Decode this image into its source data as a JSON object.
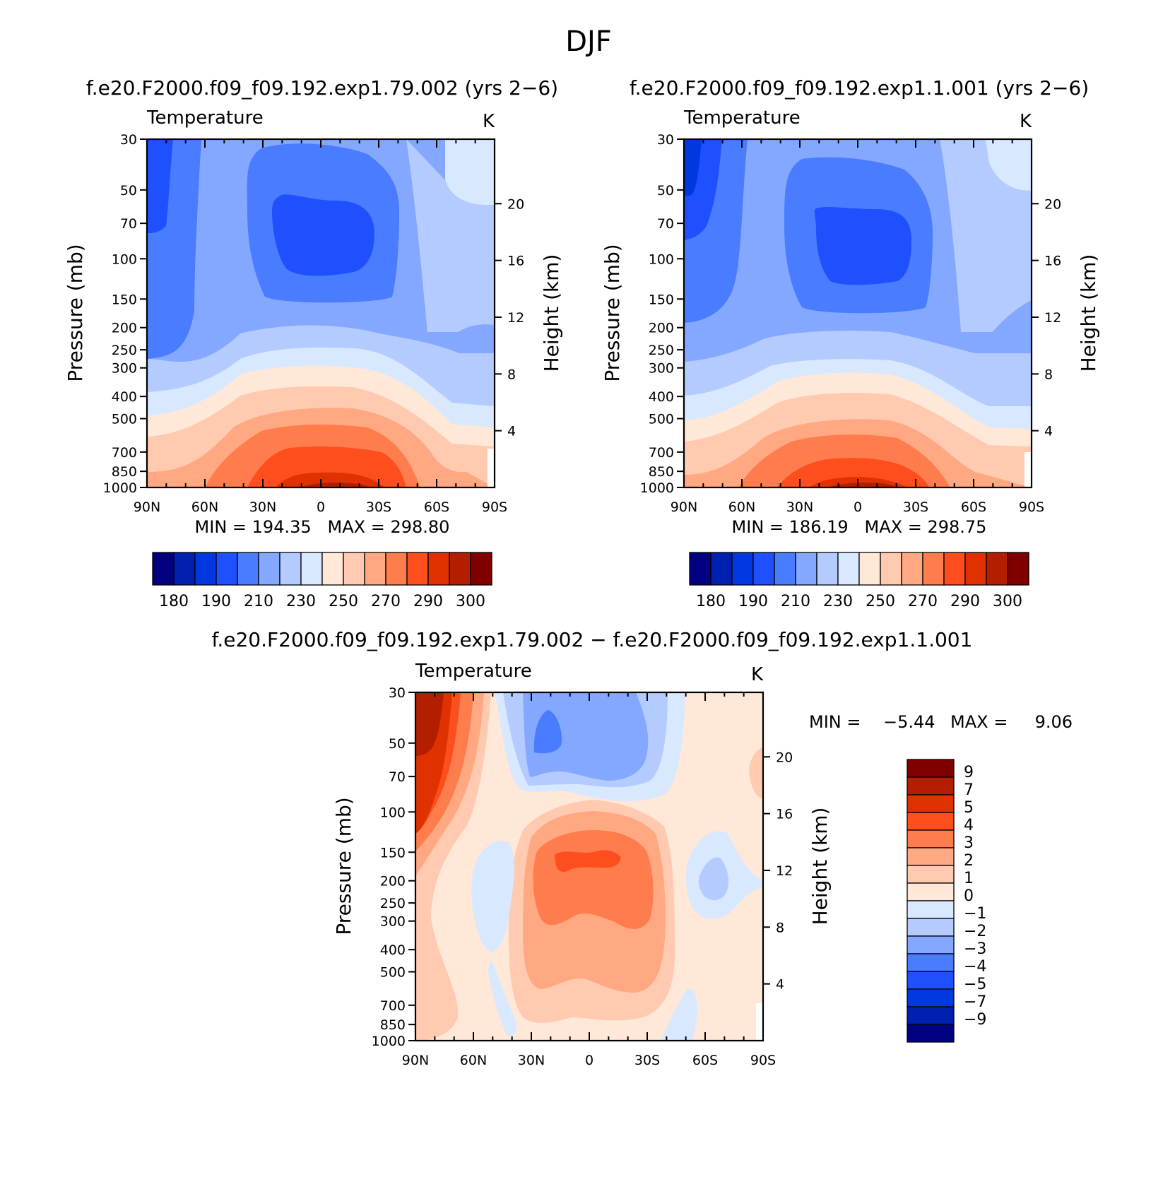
{
  "figure_title": "DJF",
  "chart_data": [
    {
      "type": "contour",
      "panel": "left",
      "title": "f.e20.F2000.f09_f09.192.exp1.79.002 (yrs 2−6)",
      "left_label": "Temperature",
      "units": "K",
      "xlabel": "",
      "ylabel": "Pressure (mb)",
      "ylabel_right": "Height (km)",
      "x_ticks": [
        "90N",
        "60N",
        "30N",
        "0",
        "30S",
        "60S",
        "90S"
      ],
      "y_ticks": [
        "30",
        "50",
        "70",
        "100",
        "150",
        "200",
        "250",
        "300",
        "400",
        "500",
        "700",
        "850",
        "1000"
      ],
      "y_right_ticks": [
        "20",
        "16",
        "12",
        "8",
        "4"
      ],
      "ylim": [
        1000,
        30
      ],
      "min_max": "MIN = 194.35   MAX = 298.80",
      "colorbar_labels": [
        "180",
        "190",
        "210",
        "230",
        "250",
        "270",
        "290",
        "300"
      ],
      "contour_levels": [
        180,
        185,
        190,
        200,
        210,
        220,
        230,
        240,
        250,
        260,
        270,
        280,
        290,
        295,
        300
      ],
      "min": 194.35,
      "max": 298.8
    },
    {
      "type": "contour",
      "panel": "right",
      "title": "f.e20.F2000.f09_f09.192.exp1.1.001 (yrs 2−6)",
      "left_label": "Temperature",
      "units": "K",
      "xlabel": "",
      "ylabel": "Pressure (mb)",
      "ylabel_right": "Height (km)",
      "x_ticks": [
        "90N",
        "60N",
        "30N",
        "0",
        "30S",
        "60S",
        "90S"
      ],
      "y_ticks": [
        "30",
        "50",
        "70",
        "100",
        "150",
        "200",
        "250",
        "300",
        "400",
        "500",
        "700",
        "850",
        "1000"
      ],
      "y_right_ticks": [
        "20",
        "16",
        "12",
        "8",
        "4"
      ],
      "ylim": [
        1000,
        30
      ],
      "min_max": "MIN = 186.19   MAX = 298.75",
      "colorbar_labels": [
        "180",
        "190",
        "210",
        "230",
        "250",
        "270",
        "290",
        "300"
      ],
      "contour_levels": [
        180,
        185,
        190,
        200,
        210,
        220,
        230,
        240,
        250,
        260,
        270,
        280,
        290,
        295,
        300
      ],
      "min": 186.19,
      "max": 298.75
    },
    {
      "type": "contour",
      "panel": "difference",
      "title": "f.e20.F2000.f09_f09.192.exp1.79.002 − f.e20.F2000.f09_f09.192.exp1.1.001",
      "left_label": "Temperature",
      "units": "K",
      "xlabel": "",
      "ylabel": "Pressure (mb)",
      "ylabel_right": "Height (km)",
      "x_ticks": [
        "90N",
        "60N",
        "30N",
        "0",
        "30S",
        "60S",
        "90S"
      ],
      "y_ticks": [
        "30",
        "50",
        "70",
        "100",
        "150",
        "200",
        "250",
        "300",
        "400",
        "500",
        "700",
        "850",
        "1000"
      ],
      "y_right_ticks": [
        "20",
        "16",
        "12",
        "8",
        "4"
      ],
      "ylim": [
        1000,
        30
      ],
      "min_label": "MIN =",
      "min_value": "−5.44",
      "max_label": "MAX =",
      "max_value": "9.06",
      "colorbar_labels": [
        "9",
        "7",
        "5",
        "4",
        "3",
        "2",
        "1",
        "0",
        "−1",
        "−2",
        "−3",
        "−4",
        "−5",
        "−7",
        "−9"
      ],
      "contour_levels": [
        -9,
        -7,
        -5,
        -4,
        -3,
        -2,
        -1,
        0,
        1,
        2,
        3,
        4,
        5,
        7,
        9
      ],
      "min": -5.44,
      "max": 9.06
    }
  ],
  "colors": {
    "abs_palette": [
      "#000080",
      "#0020b0",
      "#0038e0",
      "#1f50ff",
      "#4a7cff",
      "#84a8ff",
      "#b4cbff",
      "#d8e8ff",
      "#ffe8d8",
      "#ffcab0",
      "#ffa882",
      "#ff7c4c",
      "#ff4e1e",
      "#e03200",
      "#b41e00",
      "#800000"
    ],
    "diff_palette": [
      "#800000",
      "#b41e00",
      "#e03200",
      "#ff4e1e",
      "#ff7c4c",
      "#ffa882",
      "#ffcab0",
      "#ffe8d8",
      "#d8e8ff",
      "#b4cbff",
      "#84a8ff",
      "#4a7cff",
      "#1f50ff",
      "#0038e0",
      "#0020b0",
      "#000080"
    ]
  }
}
